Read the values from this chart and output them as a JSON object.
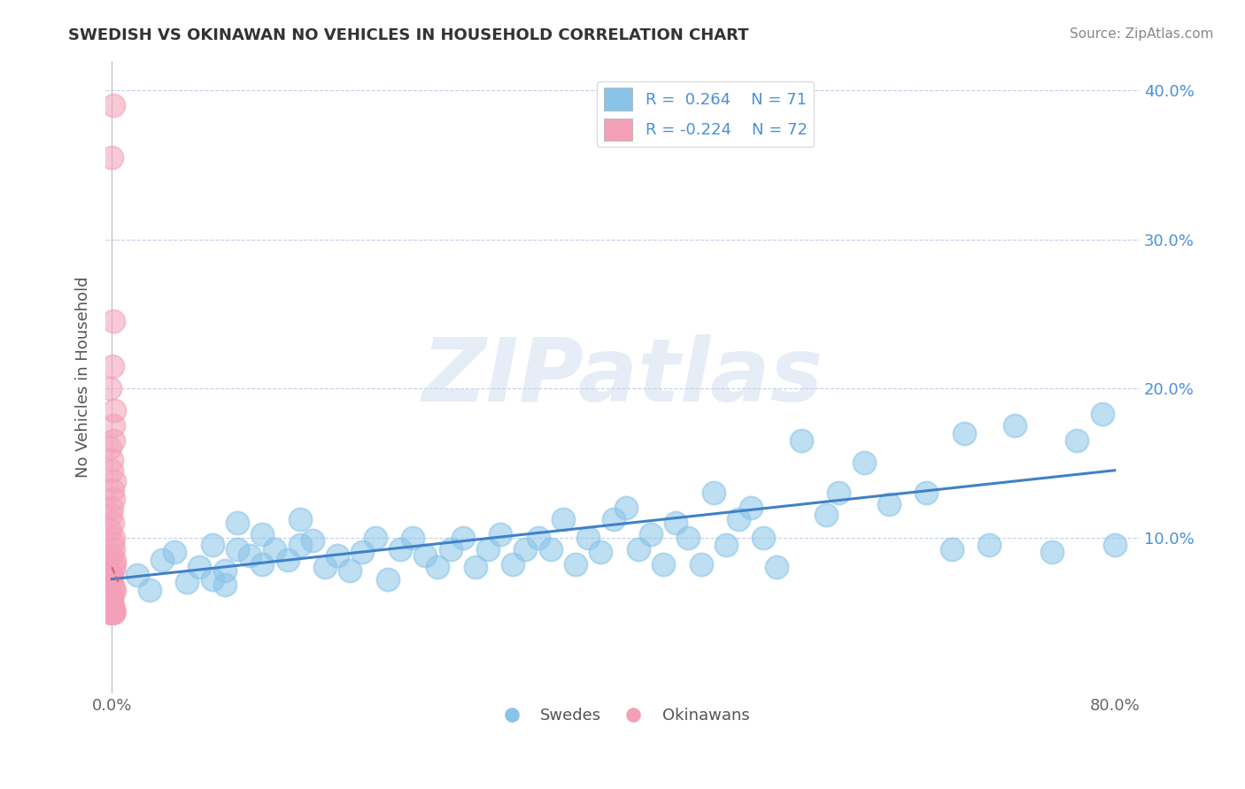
{
  "title": "SWEDISH VS OKINAWAN NO VEHICLES IN HOUSEHOLD CORRELATION CHART",
  "source": "Source: ZipAtlas.com",
  "ylabel": "No Vehicles in Household",
  "watermark": "ZIPatlas",
  "legend_blue_r": "0.264",
  "legend_blue_n": "71",
  "legend_pink_r": "-0.224",
  "legend_pink_n": "72",
  "xlim": [
    -0.005,
    0.82
  ],
  "ylim": [
    -0.005,
    0.42
  ],
  "xticks": [
    0.0,
    0.1,
    0.2,
    0.3,
    0.4,
    0.5,
    0.6,
    0.7,
    0.8
  ],
  "yticks": [
    0.0,
    0.1,
    0.2,
    0.3,
    0.4
  ],
  "xtick_labels": [
    "0.0%",
    "",
    "",
    "",
    "",
    "",
    "",
    "",
    "80.0%"
  ],
  "ytick_labels_right": [
    "",
    "10.0%",
    "20.0%",
    "30.0%",
    "40.0%"
  ],
  "blue_color": "#89C4E8",
  "pink_color": "#F4A0B8",
  "trend_blue_color": "#4080C8",
  "trend_pink_color": "#D06080",
  "background_color": "#FFFFFF",
  "grid_color": "#C0D0E8",
  "blue_scatter_x": [
    0.02,
    0.03,
    0.04,
    0.05,
    0.06,
    0.07,
    0.08,
    0.08,
    0.09,
    0.09,
    0.1,
    0.1,
    0.11,
    0.12,
    0.12,
    0.13,
    0.14,
    0.15,
    0.15,
    0.16,
    0.17,
    0.18,
    0.19,
    0.2,
    0.21,
    0.22,
    0.23,
    0.24,
    0.25,
    0.26,
    0.27,
    0.28,
    0.29,
    0.3,
    0.31,
    0.32,
    0.33,
    0.34,
    0.35,
    0.36,
    0.37,
    0.38,
    0.39,
    0.4,
    0.41,
    0.42,
    0.43,
    0.44,
    0.45,
    0.46,
    0.47,
    0.48,
    0.49,
    0.5,
    0.51,
    0.52,
    0.53,
    0.55,
    0.57,
    0.58,
    0.6,
    0.62,
    0.65,
    0.67,
    0.68,
    0.7,
    0.72,
    0.75,
    0.77,
    0.79,
    0.8
  ],
  "blue_scatter_y": [
    0.075,
    0.065,
    0.085,
    0.09,
    0.07,
    0.08,
    0.072,
    0.095,
    0.078,
    0.068,
    0.092,
    0.11,
    0.088,
    0.082,
    0.102,
    0.092,
    0.085,
    0.095,
    0.112,
    0.098,
    0.08,
    0.088,
    0.078,
    0.09,
    0.1,
    0.072,
    0.092,
    0.1,
    0.088,
    0.08,
    0.092,
    0.1,
    0.08,
    0.092,
    0.102,
    0.082,
    0.092,
    0.1,
    0.092,
    0.112,
    0.082,
    0.1,
    0.09,
    0.112,
    0.12,
    0.092,
    0.102,
    0.082,
    0.11,
    0.1,
    0.082,
    0.13,
    0.095,
    0.112,
    0.12,
    0.1,
    0.08,
    0.165,
    0.115,
    0.13,
    0.15,
    0.122,
    0.13,
    0.092,
    0.17,
    0.095,
    0.175,
    0.09,
    0.165,
    0.183,
    0.095
  ],
  "pink_scatter_x": [
    0.0,
    0.0,
    0.0,
    0.0,
    0.0,
    0.0,
    0.0,
    0.0,
    0.0,
    0.0,
    0.0,
    0.0,
    0.0,
    0.0,
    0.0,
    0.0,
    0.0,
    0.0,
    0.0,
    0.0,
    0.0,
    0.0,
    0.0,
    0.0,
    0.0,
    0.0,
    0.0,
    0.0,
    0.0,
    0.0,
    0.0,
    0.0,
    0.0,
    0.0,
    0.0,
    0.0,
    0.0,
    0.0,
    0.0,
    0.0,
    0.0,
    0.0,
    0.0,
    0.0,
    0.0,
    0.0,
    0.0,
    0.0,
    0.0,
    0.0,
    0.0,
    0.0,
    0.0,
    0.0,
    0.0,
    0.0,
    0.0,
    0.0,
    0.0,
    0.0,
    0.0,
    0.0,
    0.0,
    0.0,
    0.0,
    0.0,
    0.0,
    0.0,
    0.0,
    0.0,
    0.0,
    0.0
  ],
  "pink_scatter_y": [
    0.39,
    0.355,
    0.245,
    0.215,
    0.2,
    0.185,
    0.175,
    0.165,
    0.16,
    0.152,
    0.145,
    0.138,
    0.132,
    0.126,
    0.12,
    0.115,
    0.11,
    0.105,
    0.1,
    0.096,
    0.092,
    0.088,
    0.085,
    0.082,
    0.079,
    0.076,
    0.074,
    0.072,
    0.07,
    0.068,
    0.066,
    0.064,
    0.062,
    0.06,
    0.059,
    0.058,
    0.057,
    0.056,
    0.055,
    0.054,
    0.053,
    0.052,
    0.051,
    0.05,
    0.05,
    0.05,
    0.05,
    0.05,
    0.05,
    0.05,
    0.05,
    0.05,
    0.05,
    0.05,
    0.05,
    0.05,
    0.05,
    0.05,
    0.05,
    0.05,
    0.05,
    0.05,
    0.05,
    0.05,
    0.05,
    0.05,
    0.05,
    0.05,
    0.05,
    0.05,
    0.05,
    0.05
  ],
  "blue_trend_x": [
    0.0,
    0.8
  ],
  "blue_trend_y_start": 0.072,
  "blue_trend_y_end": 0.145,
  "pink_trend_x": [
    0.0,
    0.005
  ],
  "pink_trend_y_start": 0.08,
  "pink_trend_y_end": 0.07
}
